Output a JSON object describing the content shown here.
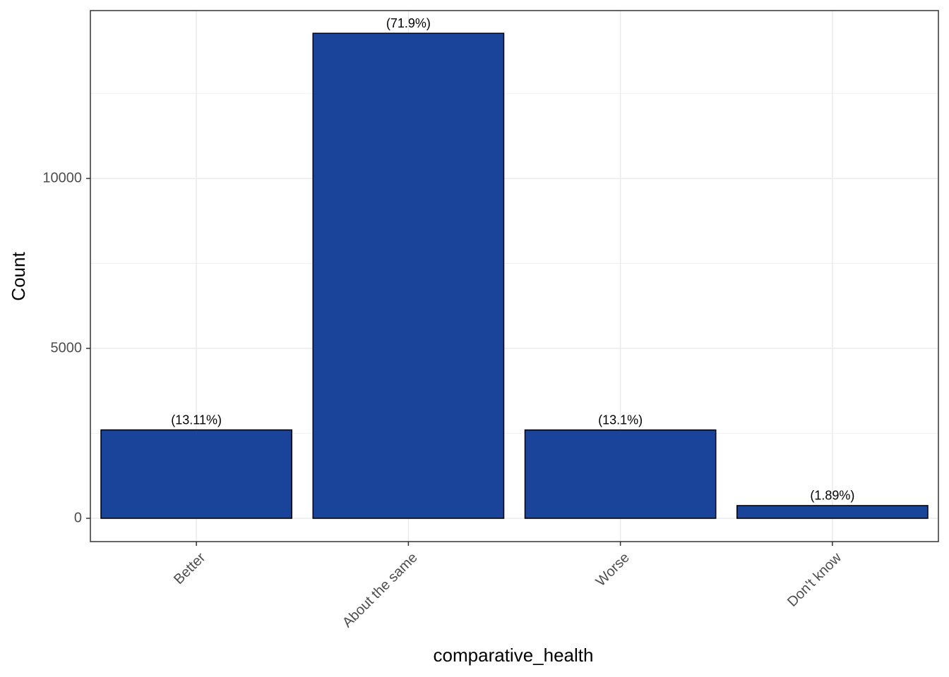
{
  "chart_data": {
    "type": "bar",
    "x_label": "comparative_health",
    "y_label": "Count",
    "categories": [
      "Better",
      "About the same",
      "Worse",
      "Don't know"
    ],
    "values": [
      2602,
      14272,
      2600,
      375
    ],
    "annotations": [
      "(13.11%)",
      "(71.9%)",
      "(13.1%)",
      "(1.89%)"
    ],
    "color": "#1a449a",
    "ylim": [
      -685,
      14940
    ],
    "yticks": [
      0,
      5000,
      10000
    ],
    "minor_yticks": [
      2500,
      7500,
      12500
    ],
    "grid": true
  }
}
